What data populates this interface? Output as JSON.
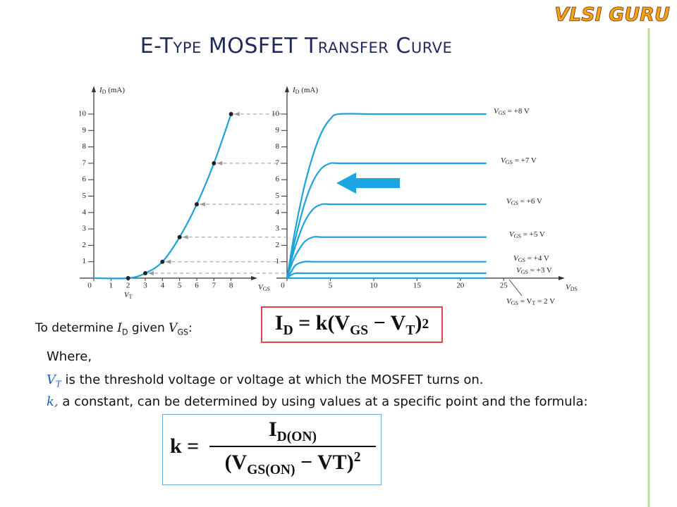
{
  "logo": "VLSI GURU",
  "title": "E-Type MOSFET Transfer Curve",
  "chart_data": [
    {
      "type": "line",
      "y_label": [
        "I",
        {
          "sub": "D"
        },
        " (mA)"
      ],
      "x_label": [
        "V",
        {
          "sub": "GS"
        }
      ],
      "x": [
        0,
        2,
        3,
        4,
        5,
        6,
        7,
        8
      ],
      "values": [
        0,
        0,
        0.3,
        1,
        2.5,
        4.5,
        7,
        10
      ],
      "color": "#1fa2db",
      "marker_color": "#222222",
      "xlim": [
        0,
        9
      ],
      "ylim": [
        0,
        11
      ],
      "xticks": [
        0,
        1,
        2,
        3,
        4,
        5,
        6,
        7,
        8
      ],
      "yticks": [
        1,
        2,
        3,
        4,
        5,
        6,
        7,
        8,
        9,
        10
      ],
      "annotations": [
        {
          "x": 2,
          "text": [
            "V",
            {
              "sub": "T"
            }
          ]
        }
      ]
    },
    {
      "type": "line",
      "y_label": [
        "I",
        {
          "sub": "D"
        },
        " (mA)"
      ],
      "x_label": [
        "V",
        {
          "sub": "DS"
        }
      ],
      "x": [
        0,
        0.5,
        1,
        2,
        3,
        4,
        5,
        6,
        10,
        15,
        20,
        23
      ],
      "series": [
        {
          "label": [
            "V",
            {
              "sub": "GS"
            },
            " = +8 V"
          ],
          "color": "#1fa2db",
          "values": [
            0,
            1.6,
            3.1,
            5.6,
            7.5,
            8.9,
            9.7,
            10,
            10,
            10,
            10,
            10
          ]
        },
        {
          "label": [
            "V",
            {
              "sub": "GS"
            },
            " = +7 V"
          ],
          "color": "#1fa2db",
          "values": [
            0,
            1.3,
            2.5,
            4.5,
            5.9,
            6.7,
            7,
            7,
            7,
            7,
            7,
            7
          ]
        },
        {
          "label": [
            "V",
            {
              "sub": "GS"
            },
            " = +6 V"
          ],
          "color": "#1fa2db",
          "values": [
            0,
            1.1,
            2.0,
            3.4,
            4.2,
            4.5,
            4.5,
            4.5,
            4.5,
            4.5,
            4.5,
            4.5
          ]
        },
        {
          "label": [
            "V",
            {
              "sub": "GS"
            },
            " = +5 V"
          ],
          "color": "#1fa2db",
          "values": [
            0,
            0.8,
            1.4,
            2.2,
            2.5,
            2.5,
            2.5,
            2.5,
            2.5,
            2.5,
            2.5,
            2.5
          ]
        },
        {
          "label": [
            "V",
            {
              "sub": "GS"
            },
            " = +4 V"
          ],
          "color": "#1fa2db",
          "values": [
            0,
            0.4,
            0.8,
            1,
            1,
            1,
            1,
            1,
            1,
            1,
            1,
            1
          ]
        },
        {
          "label": [
            "V",
            {
              "sub": "GS"
            },
            " = +3 V"
          ],
          "color": "#1fa2db",
          "values": [
            0,
            0.2,
            0.3,
            0.3,
            0.3,
            0.3,
            0.3,
            0.3,
            0.3,
            0.3,
            0.3,
            0.3
          ]
        },
        {
          "label": [
            "V",
            {
              "sub": "GS"
            },
            " = V",
            {
              "sub": "T"
            },
            " = 2 V"
          ],
          "color": "#1fa2db",
          "values": [
            0,
            0,
            0,
            0,
            0,
            0,
            0,
            0,
            0,
            0,
            0,
            0
          ]
        }
      ],
      "xlim": [
        0,
        31
      ],
      "ylim": [
        0,
        11
      ],
      "xticks": [
        0,
        5,
        10,
        15,
        20,
        25
      ],
      "yticks": [
        1,
        2,
        3,
        4,
        5,
        6,
        7,
        8,
        9,
        10
      ]
    }
  ],
  "text": {
    "intro": [
      "To determine ",
      "I",
      {
        "sub": "D"
      },
      " given ",
      "V",
      {
        "sub": "GS"
      },
      ":"
    ],
    "where": "Where,",
    "vt_line": [
      "V",
      {
        "sub": "T"
      },
      " is the threshold voltage or voltage at which the MOSFET turns on."
    ],
    "k_line": [
      "k,",
      " a constant, can be determined by using values at a specific  point and the formula:"
    ]
  },
  "formula_1": {
    "parts": [
      "I",
      {
        "sub": "D"
      },
      " = k(V",
      {
        "sub": "GS"
      },
      " − V",
      {
        "sub": "T"
      },
      ")"
    ],
    "exponent": "2"
  },
  "formula_2": {
    "lhs": "k =",
    "numerator": [
      "I",
      {
        "sub": "D(ON)"
      }
    ],
    "denominator": [
      "(V",
      {
        "sub": "GS(ON)"
      },
      " − VT)"
    ],
    "exponent": "2"
  }
}
